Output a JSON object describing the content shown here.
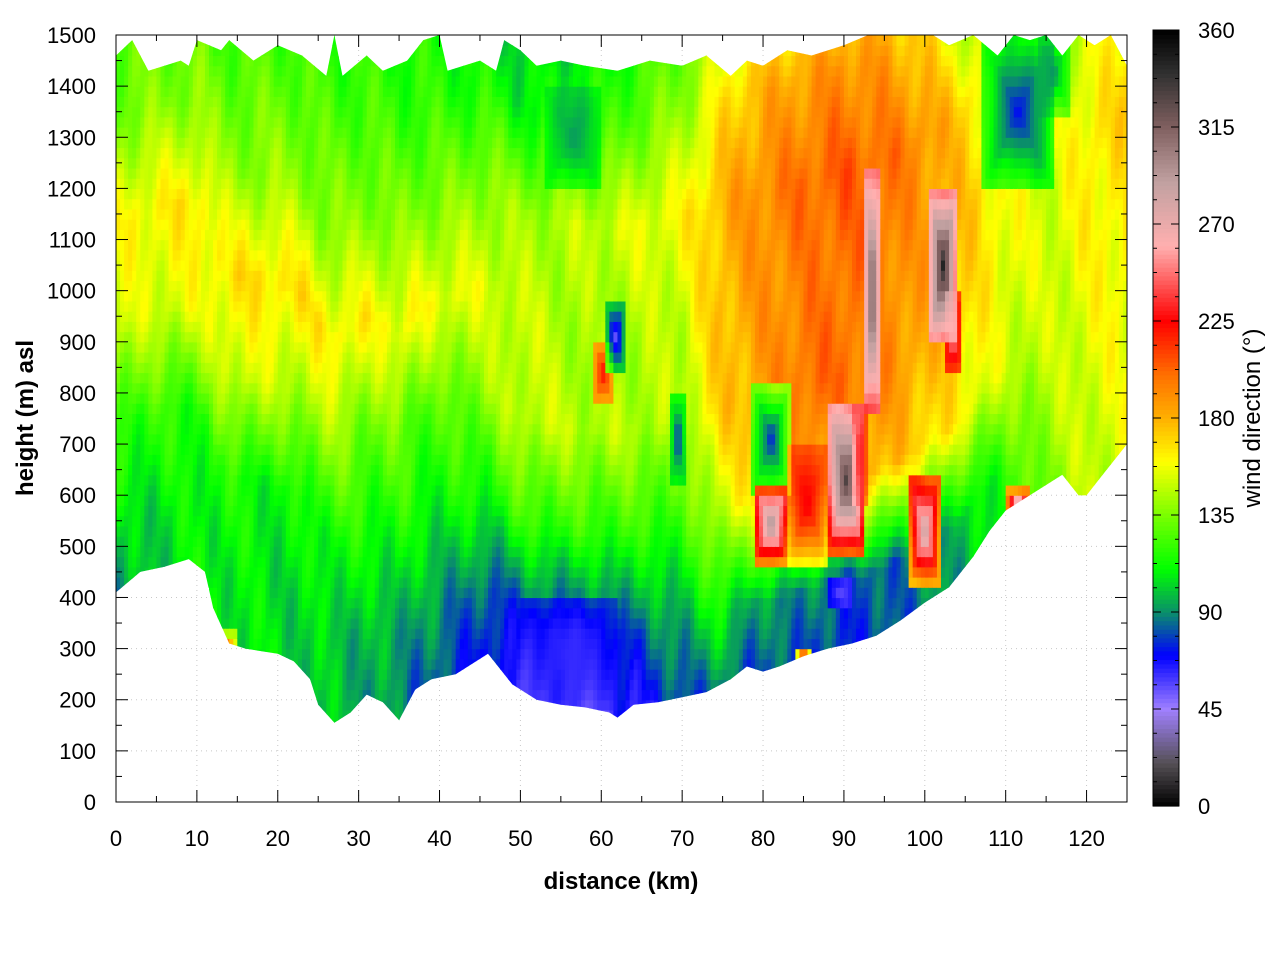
{
  "chart_data": {
    "type": "heatmap",
    "xlabel": "distance (km)",
    "ylabel": "height (m) asl",
    "colorbar_label": "wind direction (°)",
    "xlim": [
      0,
      125
    ],
    "ylim": [
      0,
      1500
    ],
    "clim": [
      0,
      360
    ],
    "x_ticks": [
      "0",
      "10",
      "20",
      "30",
      "40",
      "50",
      "60",
      "70",
      "80",
      "90",
      "100",
      "110",
      "120"
    ],
    "y_ticks": [
      "0",
      "100",
      "200",
      "300",
      "400",
      "500",
      "600",
      "700",
      "800",
      "900",
      "1000",
      "1100",
      "1200",
      "1300",
      "1400",
      "1500"
    ],
    "colorbar_ticks": [
      "0",
      "45",
      "90",
      "135",
      "180",
      "225",
      "270",
      "315",
      "360"
    ],
    "grid": "dotted",
    "colormap": [
      {
        "v": 0,
        "c": "#000000"
      },
      {
        "v": 20,
        "c": "#555055"
      },
      {
        "v": 45,
        "c": "#a080ff"
      },
      {
        "v": 70,
        "c": "#0000ff"
      },
      {
        "v": 90,
        "c": "#0a8f6a"
      },
      {
        "v": 110,
        "c": "#00ff00"
      },
      {
        "v": 135,
        "c": "#7aff00"
      },
      {
        "v": 160,
        "c": "#ffff00"
      },
      {
        "v": 180,
        "c": "#ffb000"
      },
      {
        "v": 200,
        "c": "#ff7000"
      },
      {
        "v": 225,
        "c": "#ff0000"
      },
      {
        "v": 260,
        "c": "#ffb0b0"
      },
      {
        "v": 290,
        "c": "#c0a0a0"
      },
      {
        "v": 315,
        "c": "#806060"
      },
      {
        "v": 340,
        "c": "#303030"
      },
      {
        "v": 360,
        "c": "#000000"
      }
    ],
    "terrain": {
      "x": [
        0,
        3,
        6,
        9,
        11,
        12,
        14,
        16,
        18,
        20,
        22,
        24,
        25,
        27,
        29,
        31,
        33,
        35,
        37,
        39,
        42,
        46,
        49,
        52,
        55,
        58,
        61,
        62,
        64,
        67,
        70,
        73,
        76,
        78,
        80,
        82,
        85,
        88,
        91,
        94,
        97,
        100,
        103,
        106,
        108,
        110,
        112,
        115,
        117,
        119,
        120,
        122,
        125
      ],
      "y": [
        410,
        450,
        460,
        475,
        450,
        380,
        310,
        300,
        295,
        290,
        275,
        240,
        190,
        155,
        175,
        210,
        195,
        160,
        220,
        240,
        250,
        290,
        230,
        200,
        190,
        185,
        175,
        165,
        190,
        195,
        205,
        215,
        240,
        265,
        255,
        265,
        285,
        300,
        310,
        325,
        355,
        390,
        420,
        480,
        530,
        570,
        590,
        620,
        640,
        600,
        600,
        640,
        700
      ]
    },
    "top_edge": {
      "x": [
        0,
        2,
        4,
        6,
        8,
        9,
        10,
        13,
        14,
        17,
        20,
        23,
        26,
        27,
        28,
        31,
        33,
        36,
        38,
        40,
        41,
        45,
        47,
        48,
        50,
        52,
        55,
        58,
        62,
        66,
        70,
        73,
        76,
        78,
        80,
        83,
        86,
        90,
        93,
        96,
        99,
        101,
        103,
        106,
        109,
        111,
        113,
        115,
        117,
        119,
        121,
        123,
        125
      ],
      "y": [
        1460,
        1490,
        1430,
        1440,
        1450,
        1440,
        1490,
        1470,
        1490,
        1450,
        1480,
        1460,
        1420,
        1500,
        1420,
        1460,
        1430,
        1450,
        1490,
        1500,
        1430,
        1450,
        1430,
        1490,
        1470,
        1440,
        1450,
        1440,
        1430,
        1450,
        1440,
        1460,
        1420,
        1450,
        1440,
        1470,
        1460,
        1480,
        1500,
        1500,
        1500,
        1500,
        1480,
        1500,
        1460,
        1500,
        1490,
        1500,
        1460,
        1500,
        1480,
        1500,
        1440
      ]
    },
    "field": {
      "x_nodes": [
        0,
        10,
        20,
        30,
        40,
        50,
        60,
        70,
        75,
        80,
        85,
        90,
        95,
        100,
        105,
        110,
        115,
        120,
        125
      ],
      "h_nodes": [
        1500,
        1300,
        1100,
        900,
        700,
        500,
        300,
        150
      ],
      "values": [
        [
          120,
          120,
          118,
          115,
          112,
          100,
          105,
          125,
          140,
          150,
          160,
          162,
          160,
          140,
          110,
          90,
          70,
          120,
          135
        ],
        [
          125,
          126,
          128,
          125,
          118,
          110,
          120,
          140,
          165,
          180,
          185,
          190,
          185,
          170,
          140,
          110,
          90,
          140,
          150
        ],
        [
          135,
          138,
          140,
          138,
          135,
          140,
          150,
          160,
          180,
          192,
          200,
          205,
          200,
          190,
          170,
          150,
          140,
          155,
          160
        ],
        [
          160,
          165,
          168,
          162,
          158,
          150,
          140,
          150,
          178,
          188,
          195,
          200,
          195,
          185,
          175,
          160,
          150,
          165,
          170
        ],
        [
          150,
          155,
          148,
          135,
          125,
          150,
          145,
          145,
          172,
          185,
          200,
          200,
          192,
          182,
          168,
          158,
          152,
          160,
          165
        ],
        [
          120,
          118,
          110,
          115,
          110,
          120,
          118,
          120,
          150,
          170,
          188,
          185,
          178,
          170,
          160,
          150,
          148,
          155,
          160
        ],
        [
          100,
          110,
          105,
          98,
          90,
          75,
          72,
          95,
          110,
          90,
          92,
          80,
          82,
          95,
          100,
          120,
          140,
          150,
          155
        ],
        [
          90,
          110,
          105,
          95,
          80,
          60,
          55,
          80,
          85,
          80,
          80,
          75,
          80,
          85,
          95,
          110,
          130,
          145,
          150
        ]
      ]
    },
    "features": [
      {
        "x0": 59,
        "x1": 61.5,
        "h0": 780,
        "h1": 900,
        "value": 225
      },
      {
        "x0": 60.5,
        "x1": 63,
        "h0": 840,
        "h1": 980,
        "value": 55
      },
      {
        "x0": 68.5,
        "x1": 70.5,
        "h0": 620,
        "h1": 800,
        "value": 75
      },
      {
        "x0": 78.5,
        "x1": 83.5,
        "h0": 600,
        "h1": 820,
        "value": 72
      },
      {
        "x0": 79,
        "x1": 83,
        "h0": 470,
        "h1": 620,
        "value": 300
      },
      {
        "x0": 83,
        "x1": 88,
        "h0": 470,
        "h1": 700,
        "value": 228
      },
      {
        "x0": 88,
        "x1": 92.5,
        "h0": 480,
        "h1": 780,
        "value": 330
      },
      {
        "x0": 92.5,
        "x1": 94.5,
        "h0": 760,
        "h1": 1240,
        "value": 320
      },
      {
        "x0": 91,
        "x1": 93,
        "h0": 580,
        "h1": 780,
        "value": 230
      },
      {
        "x0": 98,
        "x1": 102,
        "h0": 420,
        "h1": 640,
        "value": 290
      },
      {
        "x0": 100.5,
        "x1": 104,
        "h0": 900,
        "h1": 1200,
        "value": 345
      },
      {
        "x0": 102.5,
        "x1": 104.5,
        "h0": 840,
        "h1": 1000,
        "value": 260
      },
      {
        "x0": 84,
        "x1": 86,
        "h0": 270,
        "h1": 300,
        "value": 225
      },
      {
        "x0": 88,
        "x1": 91,
        "h0": 380,
        "h1": 440,
        "value": 55
      },
      {
        "x0": 110,
        "x1": 113,
        "h0": 560,
        "h1": 610,
        "value": 280
      },
      {
        "x0": 107,
        "x1": 116,
        "h0": 1200,
        "h1": 1500,
        "value": 70
      },
      {
        "x0": 114,
        "x1": 118,
        "h0": 1350,
        "h1": 1500,
        "value": 90
      },
      {
        "x0": 50,
        "x1": 62,
        "h0": 180,
        "h1": 400,
        "value": 62
      },
      {
        "x0": 12,
        "x1": 15,
        "h0": 295,
        "h1": 330,
        "value": 205
      },
      {
        "x0": 53,
        "x1": 60,
        "h0": 1200,
        "h1": 1400,
        "value": 92
      }
    ]
  }
}
